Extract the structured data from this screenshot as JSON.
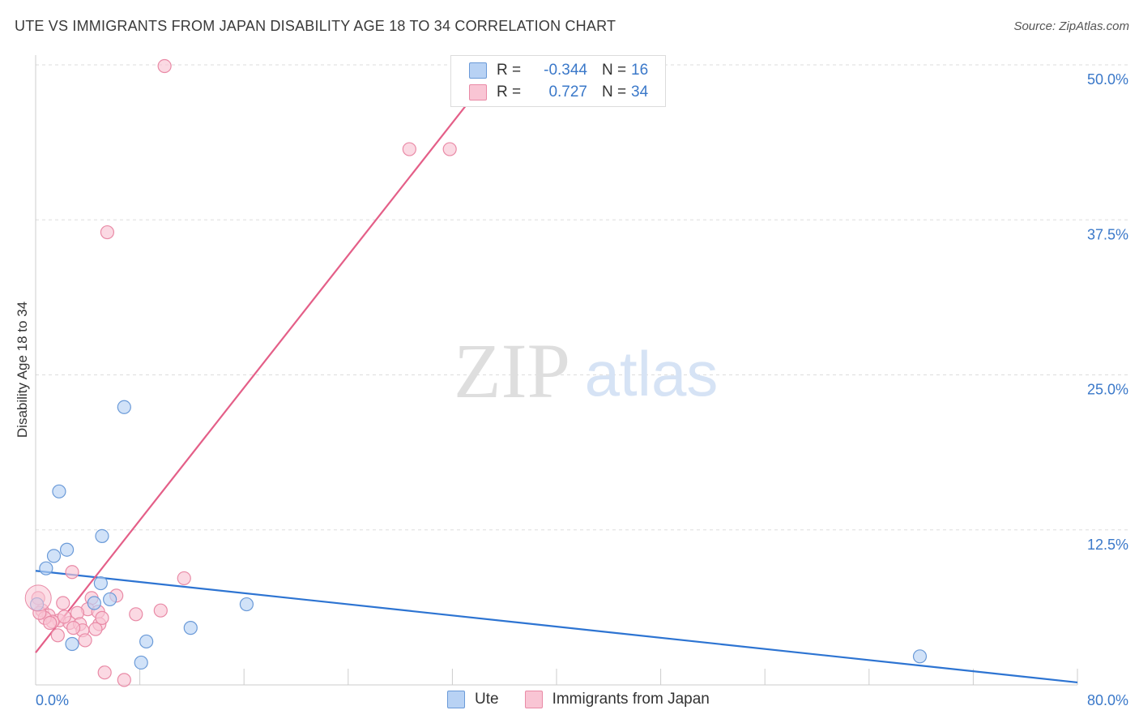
{
  "title": "UTE VS IMMIGRANTS FROM JAPAN DISABILITY AGE 18 TO 34 CORRELATION CHART",
  "source": "Source: ZipAtlas.com",
  "watermark": {
    "zip": "ZIP",
    "atlas": "atlas"
  },
  "colors": {
    "ute_fill": "#b8d2f4",
    "ute_stroke": "#6a9ad8",
    "ute_line": "#2d74d2",
    "japan_fill": "#f9c5d4",
    "japan_stroke": "#e98aa6",
    "japan_line": "#e45f88",
    "axis_text": "#3a78c9",
    "grid": "#dddddd"
  },
  "legend": {
    "rows": [
      {
        "r_label": "R =",
        "r_value": "-0.344",
        "n_label": "N =",
        "n_value": "16"
      },
      {
        "r_label": "R =",
        "r_value": "0.727",
        "n_label": "N =",
        "n_value": "34"
      }
    ]
  },
  "bottom_legend": {
    "ute": "Ute",
    "japan": "Immigrants from Japan"
  },
  "chart_data": {
    "type": "scatter",
    "title": "UTE VS IMMIGRANTS FROM JAPAN DISABILITY AGE 18 TO 34 CORRELATION CHART",
    "xlabel": "",
    "ylabel": "Disability Age 18 to 34",
    "xlim": [
      0,
      80
    ],
    "ylim": [
      0,
      50
    ],
    "x_tick_labels": [
      "0.0%",
      "80.0%"
    ],
    "y_tick_labels": [
      "12.5%",
      "25.0%",
      "37.5%",
      "50.0%"
    ],
    "y_ticks": [
      12.5,
      25.0,
      37.5,
      50.0
    ],
    "series": [
      {
        "name": "Ute",
        "r": -0.344,
        "n": 16,
        "points": [
          [
            0.1,
            6.5
          ],
          [
            0.8,
            9.4
          ],
          [
            1.4,
            10.4
          ],
          [
            1.8,
            15.6
          ],
          [
            2.4,
            10.9
          ],
          [
            2.8,
            3.3
          ],
          [
            5.1,
            12.0
          ],
          [
            5.0,
            8.2
          ],
          [
            4.5,
            6.6
          ],
          [
            5.7,
            6.9
          ],
          [
            6.8,
            22.4
          ],
          [
            8.1,
            1.8
          ],
          [
            8.5,
            3.5
          ],
          [
            11.9,
            4.6
          ],
          [
            16.2,
            6.5
          ],
          [
            67.9,
            2.3
          ]
        ],
        "trend": [
          [
            0,
            9.2
          ],
          [
            80,
            0.2
          ]
        ]
      },
      {
        "name": "Immigrants from Japan",
        "r": 0.727,
        "n": 34,
        "points": [
          [
            9.9,
            49.9
          ],
          [
            5.5,
            36.5
          ],
          [
            28.7,
            43.2
          ],
          [
            31.8,
            43.2
          ],
          [
            2.8,
            9.1
          ],
          [
            11.4,
            8.6
          ],
          [
            6.2,
            7.2
          ],
          [
            4.3,
            7.0
          ],
          [
            0.2,
            7.0
          ],
          [
            2.1,
            6.6
          ],
          [
            4.0,
            6.1
          ],
          [
            3.2,
            5.8
          ],
          [
            0.5,
            6.0
          ],
          [
            1.0,
            5.6
          ],
          [
            4.8,
            5.9
          ],
          [
            9.6,
            6.0
          ],
          [
            7.7,
            5.7
          ],
          [
            1.8,
            5.2
          ],
          [
            2.6,
            5.0
          ],
          [
            3.4,
            4.9
          ],
          [
            4.9,
            4.9
          ],
          [
            1.3,
            5.1
          ],
          [
            3.6,
            4.4
          ],
          [
            0.7,
            5.4
          ],
          [
            5.1,
            5.4
          ],
          [
            2.2,
            5.5
          ],
          [
            3.8,
            3.6
          ],
          [
            1.7,
            4.0
          ],
          [
            4.6,
            4.5
          ],
          [
            1.1,
            5.0
          ],
          [
            0.3,
            5.8
          ],
          [
            2.9,
            4.6
          ],
          [
            5.3,
            1.0
          ],
          [
            6.8,
            0.4
          ]
        ],
        "trend": [
          [
            0,
            2.6
          ],
          [
            35.5,
            50.0
          ]
        ]
      }
    ]
  }
}
